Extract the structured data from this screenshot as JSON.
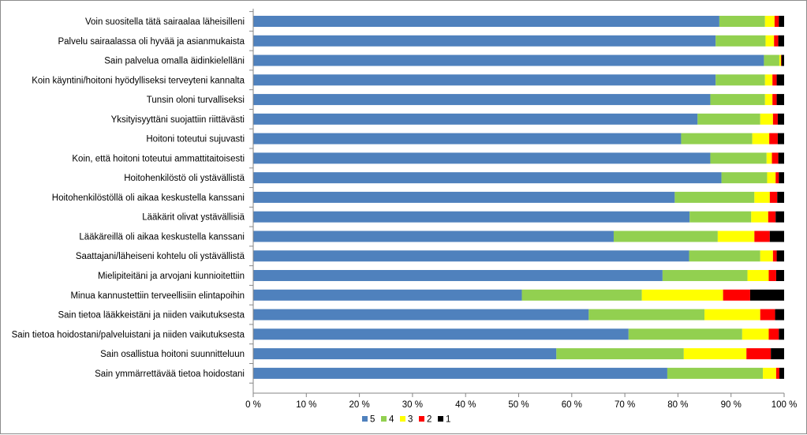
{
  "chart_data": {
    "type": "bar",
    "orientation": "horizontal",
    "stacked": true,
    "percent": true,
    "categories": [
      "Voin suositella tätä sairaalaa läheisilleni",
      "Palvelu sairaalassa oli hyvää ja asianmukaista",
      "Sain palvelua omalla äidinkielelläni",
      "Koin käyntini/hoitoni hyödylliseksi terveyteni kannalta",
      "Tunsin oloni turvalliseksi",
      "Yksityisyyttäni suojattiin riittävästi",
      "Hoitoni toteutui sujuvasti",
      "Koin, että hoitoni toteutui ammattitaitoisesti",
      "Hoitohenkilöstö oli ystävällistä",
      "Hoitohenkilöstöllä oli aikaa keskustella kanssani",
      "Lääkärit olivat ystävällisiä",
      "Lääkäreillä oli aikaa keskustella kanssani",
      "Saattajani/läheiseni kohtelu oli ystävällistä",
      "Mielipiteitäni ja arvojani kunnioitettiin",
      "Minua kannustettiin terveellisiin elintapoihin",
      "Sain tietoa lääkkeistäni ja niiden vaikutuksesta",
      "Sain tietoa hoidostani/palveluistani ja niiden vaikutuksesta",
      "Sain osallistua hoitoni suunnitteluun",
      "Sain ymmärrettävää tietoa hoidostani"
    ],
    "series": [
      {
        "name": "5",
        "color": "#4f81bd",
        "values": [
          87.8,
          87.1,
          96.2,
          87.1,
          86.1,
          83.7,
          80.6,
          86.1,
          88.2,
          79.4,
          82.2,
          67.9,
          82.1,
          77.1,
          50.6,
          63.2,
          70.7,
          57.1,
          78.0
        ]
      },
      {
        "name": "4",
        "color": "#92d050",
        "values": [
          8.6,
          9.4,
          2.9,
          9.3,
          10.3,
          11.8,
          13.4,
          10.6,
          8.6,
          15.0,
          11.6,
          19.6,
          13.4,
          16.0,
          22.6,
          21.8,
          21.4,
          24.0,
          18.0
        ]
      },
      {
        "name": "3",
        "color": "#ffff00",
        "values": [
          1.8,
          1.6,
          0.3,
          1.4,
          1.4,
          2.4,
          3.2,
          1.0,
          1.6,
          2.9,
          3.2,
          6.9,
          2.4,
          4.0,
          15.3,
          10.5,
          5.0,
          11.8,
          2.5
        ]
      },
      {
        "name": "2",
        "color": "#ff0000",
        "values": [
          0.8,
          0.8,
          0.1,
          0.8,
          0.8,
          0.9,
          1.6,
          1.2,
          0.6,
          1.4,
          1.4,
          2.9,
          0.7,
          1.4,
          5.1,
          2.8,
          1.9,
          4.6,
          0.6
        ]
      },
      {
        "name": "1",
        "color": "#000000",
        "values": [
          1.0,
          1.1,
          0.5,
          1.4,
          1.4,
          1.2,
          1.2,
          1.1,
          1.0,
          1.3,
          1.6,
          2.7,
          1.4,
          1.5,
          6.4,
          1.7,
          1.0,
          2.5,
          0.9
        ]
      }
    ],
    "xlim": [
      0,
      100
    ],
    "xticks": [
      "0 %",
      "10 %",
      "20 %",
      "30 %",
      "40 %",
      "50 %",
      "60 %",
      "70 %",
      "80 %",
      "90 %",
      "100 %"
    ],
    "grid": false,
    "legend_position": "bottom",
    "title": "",
    "xlabel": "",
    "ylabel": ""
  }
}
